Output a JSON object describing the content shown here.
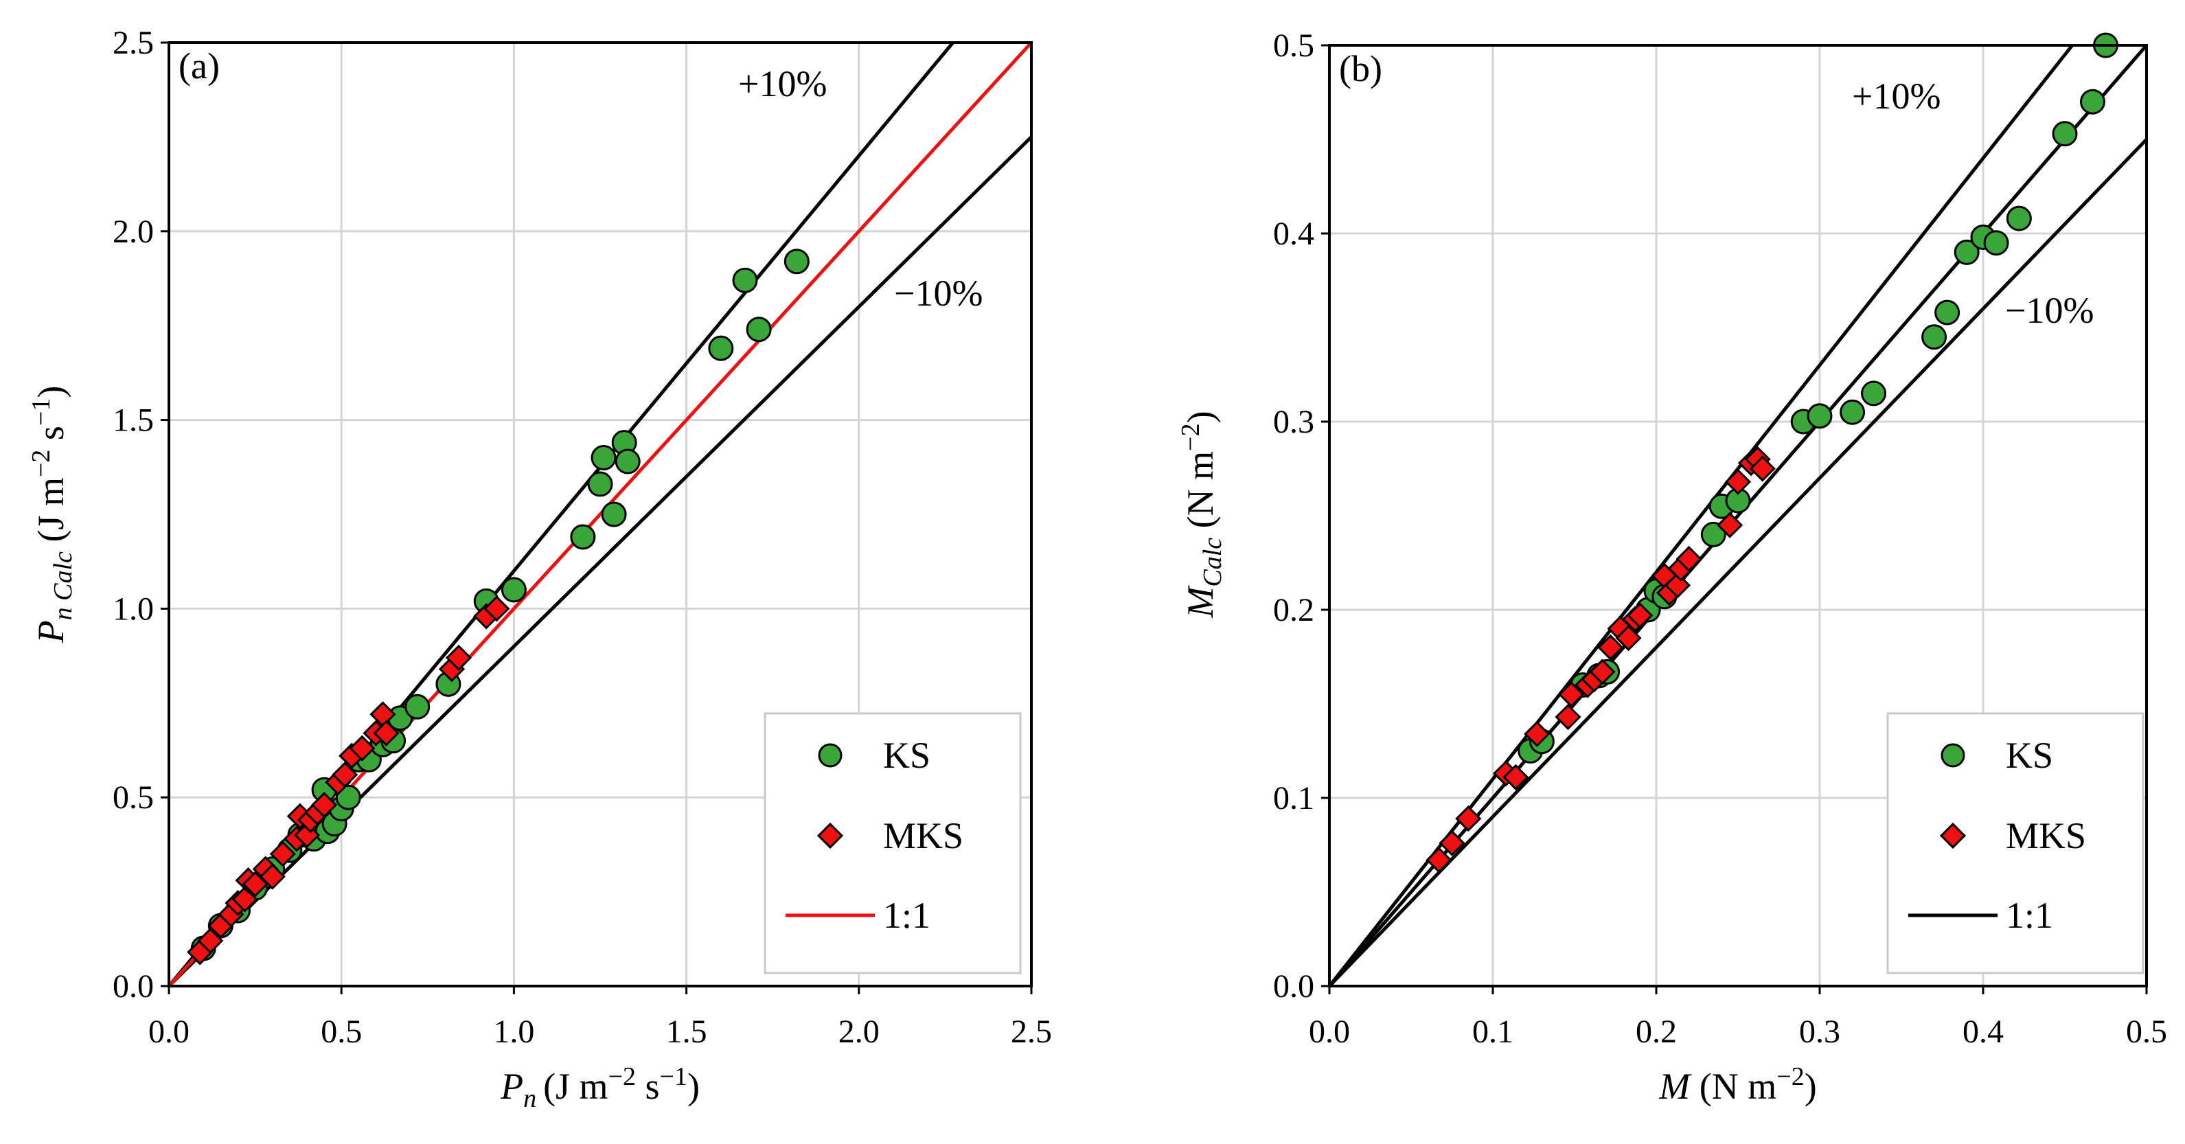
{
  "colors": {
    "ks": "#3aa63a",
    "mks": "#ee1111",
    "bound": "#000000",
    "one_to_one_a": "#ee1111",
    "one_to_one_b": "#000000",
    "grid": "#d4d4d4"
  },
  "chart_data": [
    {
      "type": "scatter",
      "panel_label": "(a)",
      "xlabel_main": "P",
      "xlabel_sub": "n",
      "xlabel_units": "(J m",
      "xlabel_exp1": "−2",
      "xlabel_units2": " s",
      "xlabel_exp2": "−1",
      "xlabel_close": ")",
      "ylabel_main": "P",
      "ylabel_sub": "n Calc",
      "ylabel_units": " (J m",
      "ylabel_exp1": "−2",
      "ylabel_units2": " s",
      "ylabel_exp2": "−1",
      "ylabel_close": ")",
      "xlim": [
        0,
        2.5
      ],
      "ylim": [
        0,
        2.5
      ],
      "xticks": [
        "0.0",
        "0.5",
        "1.0",
        "1.5",
        "2.0",
        "2.5"
      ],
      "yticks": [
        "0.0",
        "0.5",
        "1.0",
        "1.5",
        "2.0",
        "2.5"
      ],
      "xtick_values": [
        0,
        0.5,
        1.0,
        1.5,
        2.0,
        2.5
      ],
      "ytick_values": [
        0,
        0.5,
        1.0,
        1.5,
        2.0,
        2.5
      ],
      "plus_label": "+10%",
      "minus_label": "−10%",
      "plus_factor": 1.1,
      "minus_factor": 0.9,
      "one_to_one_color": "red",
      "legend": [
        "KS",
        "MKS",
        "1:1"
      ],
      "series": [
        {
          "name": "KS",
          "points": [
            [
              0.1,
              0.1
            ],
            [
              0.15,
              0.16
            ],
            [
              0.2,
              0.2
            ],
            [
              0.25,
              0.26
            ],
            [
              0.3,
              0.31
            ],
            [
              0.35,
              0.36
            ],
            [
              0.38,
              0.4
            ],
            [
              0.42,
              0.39
            ],
            [
              0.45,
              0.52
            ],
            [
              0.46,
              0.41
            ],
            [
              0.48,
              0.43
            ],
            [
              0.5,
              0.47
            ],
            [
              0.52,
              0.5
            ],
            [
              0.55,
              0.6
            ],
            [
              0.58,
              0.6
            ],
            [
              0.62,
              0.64
            ],
            [
              0.65,
              0.65
            ],
            [
              0.67,
              0.71
            ],
            [
              0.72,
              0.74
            ],
            [
              0.81,
              0.8
            ],
            [
              0.92,
              1.02
            ],
            [
              1.0,
              1.05
            ],
            [
              1.2,
              1.19
            ],
            [
              1.25,
              1.33
            ],
            [
              1.26,
              1.4
            ],
            [
              1.29,
              1.25
            ],
            [
              1.32,
              1.44
            ],
            [
              1.33,
              1.39
            ],
            [
              1.6,
              1.69
            ],
            [
              1.67,
              1.87
            ],
            [
              1.71,
              1.74
            ],
            [
              1.82,
              1.92
            ]
          ]
        },
        {
          "name": "MKS",
          "points": [
            [
              0.09,
              0.09
            ],
            [
              0.12,
              0.12
            ],
            [
              0.15,
              0.16
            ],
            [
              0.18,
              0.19
            ],
            [
              0.2,
              0.22
            ],
            [
              0.22,
              0.23
            ],
            [
              0.23,
              0.28
            ],
            [
              0.25,
              0.27
            ],
            [
              0.28,
              0.31
            ],
            [
              0.3,
              0.29
            ],
            [
              0.33,
              0.35
            ],
            [
              0.37,
              0.39
            ],
            [
              0.38,
              0.45
            ],
            [
              0.4,
              0.4
            ],
            [
              0.41,
              0.44
            ],
            [
              0.43,
              0.46
            ],
            [
              0.45,
              0.48
            ],
            [
              0.49,
              0.54
            ],
            [
              0.51,
              0.56
            ],
            [
              0.53,
              0.61
            ],
            [
              0.56,
              0.63
            ],
            [
              0.6,
              0.67
            ],
            [
              0.62,
              0.72
            ],
            [
              0.63,
              0.67
            ],
            [
              0.82,
              0.84
            ],
            [
              0.84,
              0.87
            ],
            [
              0.92,
              0.98
            ],
            [
              0.95,
              1.0
            ]
          ]
        }
      ]
    },
    {
      "type": "scatter",
      "panel_label": "(b)",
      "xlabel_main": "M",
      "xlabel_units": " (N m",
      "xlabel_exp1": "−2",
      "xlabel_close": ")",
      "ylabel_main": "M",
      "ylabel_sub": "Calc",
      "ylabel_units": " (N m",
      "ylabel_exp1": "−2",
      "ylabel_close": ")",
      "xlim": [
        0,
        0.5
      ],
      "ylim": [
        0,
        0.5
      ],
      "xticks": [
        "0.0",
        "0.1",
        "0.2",
        "0.3",
        "0.4",
        "0.5"
      ],
      "yticks": [
        "0.0",
        "0.1",
        "0.2",
        "0.3",
        "0.4",
        "0.5"
      ],
      "xtick_values": [
        0,
        0.1,
        0.2,
        0.3,
        0.4,
        0.5
      ],
      "ytick_values": [
        0,
        0.1,
        0.2,
        0.3,
        0.4,
        0.5
      ],
      "plus_label": "+10%",
      "minus_label": "−10%",
      "plus_factor": 1.1,
      "minus_factor": 0.9,
      "one_to_one_color": "black",
      "legend": [
        "KS",
        "MKS",
        "1:1"
      ],
      "series": [
        {
          "name": "KS",
          "points": [
            [
              0.123,
              0.125
            ],
            [
              0.13,
              0.13
            ],
            [
              0.155,
              0.16
            ],
            [
              0.165,
              0.165
            ],
            [
              0.17,
              0.167
            ],
            [
              0.195,
              0.2
            ],
            [
              0.2,
              0.21
            ],
            [
              0.205,
              0.207
            ],
            [
              0.235,
              0.24
            ],
            [
              0.24,
              0.255
            ],
            [
              0.25,
              0.258
            ],
            [
              0.29,
              0.3
            ],
            [
              0.3,
              0.303
            ],
            [
              0.32,
              0.305
            ],
            [
              0.333,
              0.315
            ],
            [
              0.37,
              0.345
            ],
            [
              0.378,
              0.358
            ],
            [
              0.39,
              0.39
            ],
            [
              0.4,
              0.398
            ],
            [
              0.408,
              0.395
            ],
            [
              0.422,
              0.408
            ],
            [
              0.45,
              0.453
            ],
            [
              0.467,
              0.47
            ],
            [
              0.475,
              0.5
            ]
          ]
        },
        {
          "name": "MKS",
          "points": [
            [
              0.067,
              0.067
            ],
            [
              0.075,
              0.076
            ],
            [
              0.085,
              0.089
            ],
            [
              0.108,
              0.113
            ],
            [
              0.114,
              0.111
            ],
            [
              0.127,
              0.134
            ],
            [
              0.146,
              0.143
            ],
            [
              0.148,
              0.155
            ],
            [
              0.158,
              0.16
            ],
            [
              0.162,
              0.163
            ],
            [
              0.167,
              0.167
            ],
            [
              0.172,
              0.18
            ],
            [
              0.178,
              0.19
            ],
            [
              0.183,
              0.185
            ],
            [
              0.187,
              0.195
            ],
            [
              0.19,
              0.197
            ],
            [
              0.205,
              0.218
            ],
            [
              0.208,
              0.209
            ],
            [
              0.213,
              0.213
            ],
            [
              0.215,
              0.222
            ],
            [
              0.22,
              0.227
            ],
            [
              0.245,
              0.245
            ],
            [
              0.25,
              0.268
            ],
            [
              0.258,
              0.278
            ],
            [
              0.262,
              0.28
            ],
            [
              0.265,
              0.275
            ]
          ]
        }
      ]
    }
  ]
}
